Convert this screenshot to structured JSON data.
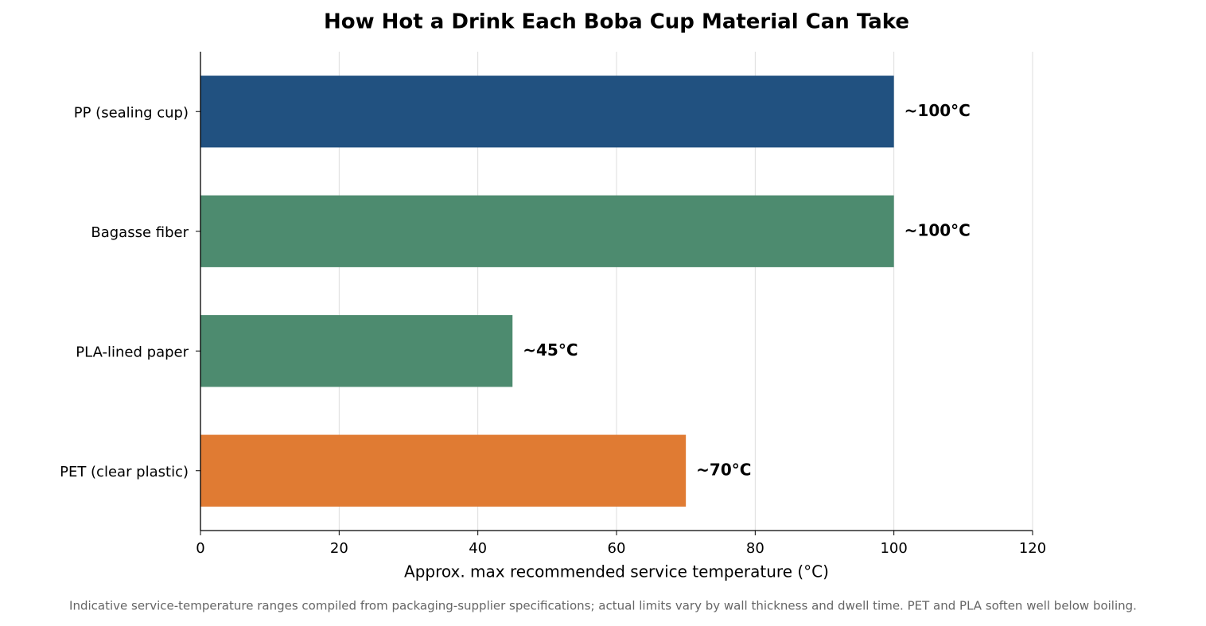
{
  "chart_data": {
    "type": "barh",
    "title": "How Hot a Drink Each Boba Cup Material Can Take",
    "categories": [
      "PP (sealing cup)",
      "Bagasse fiber",
      "PLA-lined paper",
      "PET (clear plastic)"
    ],
    "values": [
      100,
      100,
      45,
      70
    ],
    "value_labels": [
      "~100°C",
      "~100°C",
      "~45°C",
      "~70°C"
    ],
    "colors": [
      "#215180",
      "#4d8b6f",
      "#4d8b6f",
      "#e07b33"
    ],
    "xlim": [
      0,
      120
    ],
    "xticks": [
      0,
      20,
      40,
      60,
      80,
      100,
      120
    ],
    "xlabel": "Approx. max recommended service temperature (°C)",
    "grid": true,
    "footnote": "Indicative service-temperature ranges compiled from packaging-supplier specifications; actual limits vary by wall thickness and dwell time. PET and PLA soften well below boiling."
  }
}
